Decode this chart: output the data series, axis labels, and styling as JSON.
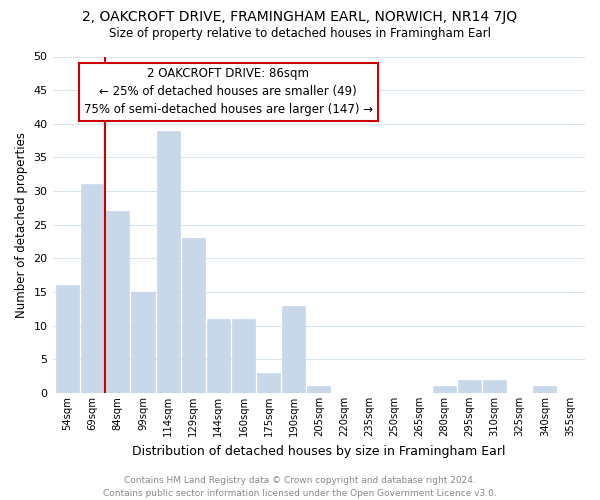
{
  "title": "2, OAKCROFT DRIVE, FRAMINGHAM EARL, NORWICH, NR14 7JQ",
  "subtitle": "Size of property relative to detached houses in Framingham Earl",
  "xlabel": "Distribution of detached houses by size in Framingham Earl",
  "ylabel": "Number of detached properties",
  "footer_line1": "Contains HM Land Registry data © Crown copyright and database right 2024.",
  "footer_line2": "Contains public sector information licensed under the Open Government Licence v3.0.",
  "bin_labels": [
    "54sqm",
    "69sqm",
    "84sqm",
    "99sqm",
    "114sqm",
    "129sqm",
    "144sqm",
    "160sqm",
    "175sqm",
    "190sqm",
    "205sqm",
    "220sqm",
    "235sqm",
    "250sqm",
    "265sqm",
    "280sqm",
    "295sqm",
    "310sqm",
    "325sqm",
    "340sqm",
    "355sqm"
  ],
  "bar_values": [
    16,
    31,
    27,
    15,
    39,
    23,
    11,
    11,
    3,
    13,
    1,
    0,
    0,
    0,
    0,
    1,
    2,
    2,
    0,
    1,
    0
  ],
  "bar_color": "#c8d8e8",
  "grid_color": "#d8e4ee",
  "ylim": [
    0,
    50
  ],
  "yticks": [
    0,
    5,
    10,
    15,
    20,
    25,
    30,
    35,
    40,
    45,
    50
  ],
  "vline_color": "#cc0000",
  "annotation_title": "2 OAKCROFT DRIVE: 86sqm",
  "annotation_line1": "← 25% of detached houses are smaller (49)",
  "annotation_line2": "75% of semi-detached houses are larger (147) →",
  "bg_color": "#ffffff"
}
